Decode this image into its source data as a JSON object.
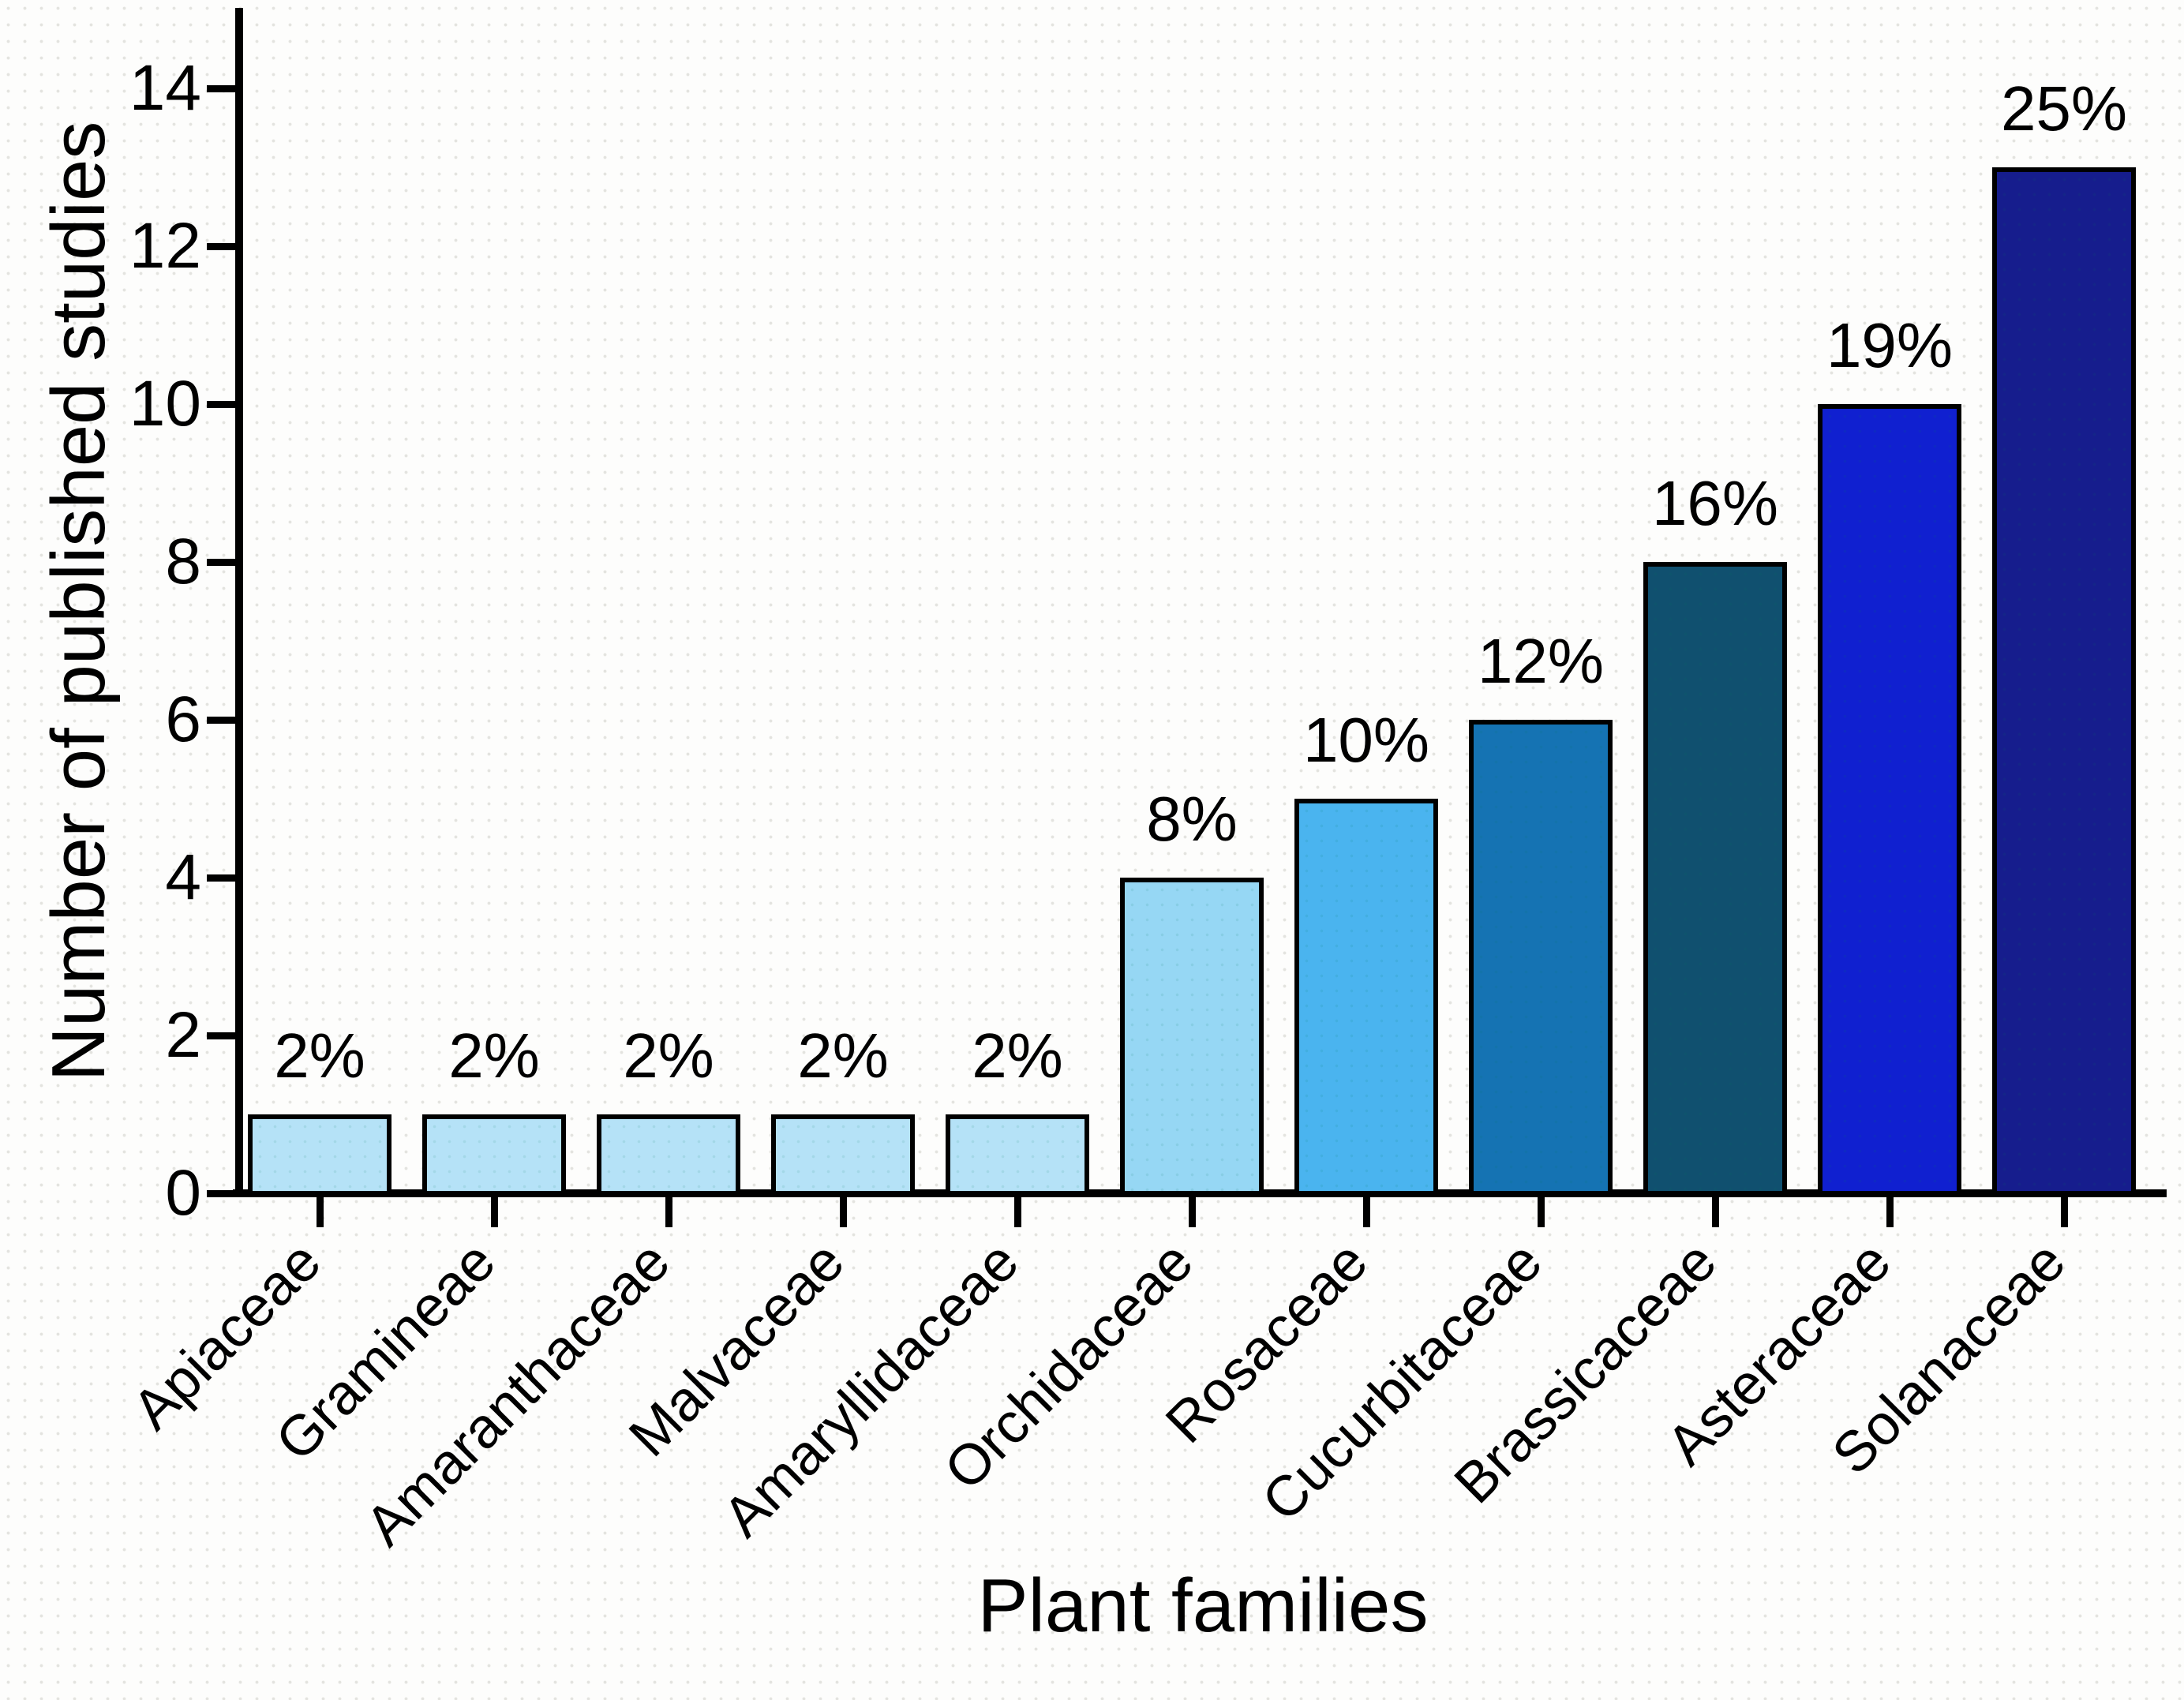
{
  "chart_data": {
    "type": "bar",
    "title": "",
    "xlabel": "Plant families",
    "ylabel": "Number of published studies",
    "ylim": [
      0,
      15
    ],
    "yticks": [
      0,
      2,
      4,
      6,
      8,
      10,
      12,
      14
    ],
    "grid": false,
    "legend": "none",
    "categories": [
      "Apiaceae",
      "Gramineae",
      "Amaranthaceae",
      "Malvaceae",
      "Amaryllidaceae",
      "Orchidaceae",
      "Rosaceae",
      "Cucurbitaceae",
      "Brassicaceae",
      "Asteraceae",
      "Solanaceae"
    ],
    "values": [
      1,
      1,
      1,
      1,
      1,
      4,
      5,
      6,
      8,
      10,
      13
    ],
    "bar_labels": [
      "2%",
      "2%",
      "2%",
      "2%",
      "2%",
      "8%",
      "10%",
      "12%",
      "16%",
      "19%",
      "25%"
    ],
    "bar_colors": [
      "#b5e2f7",
      "#b5e2f7",
      "#b5e2f7",
      "#b5e2f7",
      "#b5e2f7",
      "#96d7f4",
      "#4ab4ef",
      "#1573b3",
      "#10506f",
      "#1020d0",
      "#161d8d"
    ],
    "axis_color": "#000000",
    "background_color": "#fdfdfc"
  }
}
